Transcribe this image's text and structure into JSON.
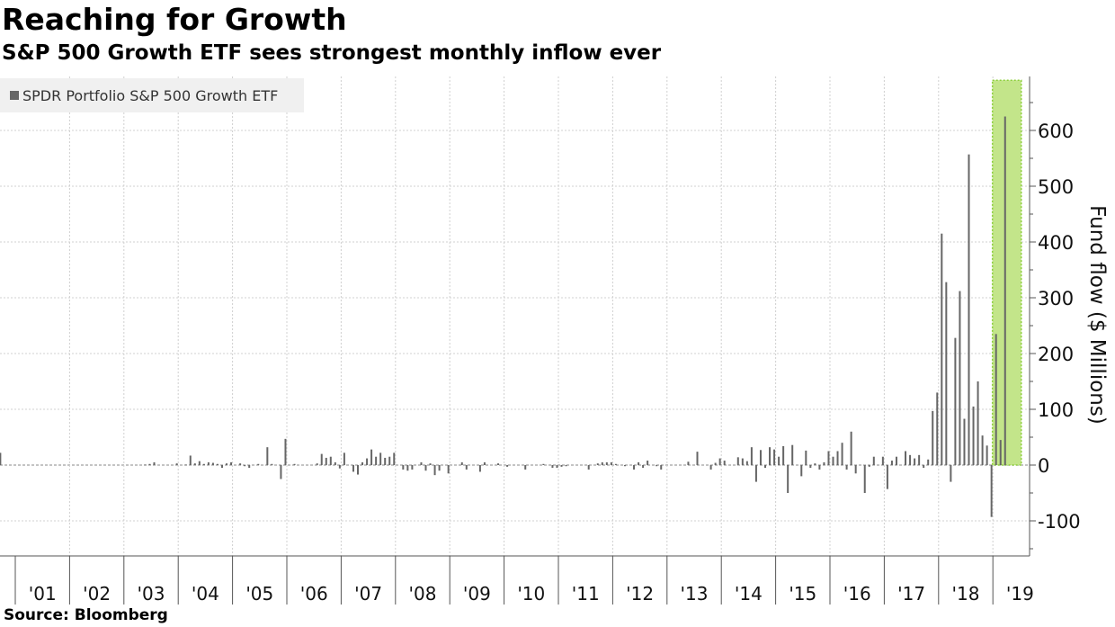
{
  "title": "Reaching for Growth",
  "subtitle": "S&P 500 Growth ETF sees strongest monthly inflow ever",
  "source": "Source: Bloomberg",
  "colors": {
    "bar": "#666666",
    "highlight_fill": "#c3e58a",
    "highlight_border": "#8ccf3a",
    "grid": "#d0d0d0"
  },
  "chart_data": {
    "type": "bar",
    "title": "Reaching for Growth",
    "subtitle": "S&P 500 Growth ETF sees strongest monthly inflow ever",
    "ylabel": "Fund flow ($ Millions)",
    "xlabel": "",
    "ylim": [
      -165,
      700
    ],
    "yticks": [
      -100,
      0,
      100,
      200,
      300,
      400,
      500,
      600
    ],
    "ytick_labels": [
      "-100",
      "0",
      "100",
      "200",
      "300",
      "400",
      "500",
      "600"
    ],
    "xtick_labels": [
      "'01",
      "'02",
      "'03",
      "'04",
      "'05",
      "'06",
      "'07",
      "'08",
      "'09",
      "'10",
      "'11",
      "'12",
      "'13",
      "'14",
      "'15",
      "'16",
      "'17",
      "'18",
      "'19"
    ],
    "legend": {
      "entries": [
        "SPDR Portfolio S&P 500 Growth ETF"
      ],
      "placement": "top-left"
    },
    "grid": true,
    "start_month": "2000-09",
    "frequency": "monthly",
    "highlight": {
      "from": "2019-01",
      "to": "2019-03"
    },
    "series": [
      {
        "name": "SPDR Portfolio S&P 500 Growth ETF",
        "values": [
          22,
          0,
          0,
          0,
          0,
          0,
          0,
          0,
          0,
          0,
          0,
          0,
          0,
          0,
          0,
          0,
          0,
          0,
          0,
          0,
          0,
          0,
          0,
          0,
          0,
          0,
          0,
          0,
          0,
          0,
          0,
          0,
          1,
          2,
          5,
          0,
          0,
          0,
          0,
          3,
          0,
          1,
          17,
          3,
          7,
          2,
          5,
          4,
          2,
          -5,
          3,
          5,
          0,
          3,
          -2,
          -5,
          0,
          2,
          0,
          32,
          2,
          0,
          -25,
          47,
          0,
          2,
          0,
          0,
          0,
          0,
          3,
          20,
          13,
          15,
          5,
          -6,
          22,
          0,
          -12,
          -17,
          5,
          12,
          28,
          15,
          22,
          13,
          15,
          22,
          0,
          -8,
          -10,
          -8,
          0,
          5,
          -10,
          3,
          -18,
          -10,
          0,
          -15,
          0,
          0,
          5,
          -8,
          0,
          0,
          -12,
          5,
          0,
          0,
          3,
          0,
          -3,
          0,
          0,
          0,
          -8,
          0,
          0,
          0,
          2,
          0,
          -5,
          -5,
          -3,
          -2,
          0,
          0,
          0,
          0,
          -8,
          0,
          3,
          5,
          5,
          5,
          2,
          0,
          -2,
          0,
          -8,
          5,
          -5,
          8,
          0,
          -2,
          -8,
          0,
          0,
          0,
          0,
          0,
          6,
          0,
          24,
          0,
          0,
          -8,
          4,
          12,
          8,
          0,
          0,
          14,
          12,
          7,
          32,
          -30,
          27,
          -5,
          32,
          28,
          15,
          34,
          -50,
          36,
          0,
          -20,
          26,
          -5,
          3,
          -8,
          5,
          25,
          15,
          25,
          40,
          -8,
          60,
          -15,
          0,
          -50,
          -3,
          15,
          0,
          15,
          -43,
          8,
          15,
          0,
          25,
          18,
          12,
          18,
          -5,
          10,
          97,
          130,
          415,
          328,
          -30,
          228,
          312,
          83,
          557,
          105,
          150,
          53,
          35,
          -93,
          235,
          45,
          625
        ]
      }
    ]
  }
}
